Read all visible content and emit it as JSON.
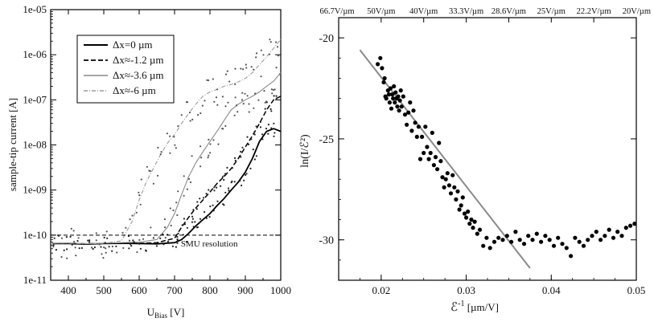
{
  "chart_data": [
    {
      "type": "line",
      "ylabel": "sample-tip current [A]",
      "xlabel_main": "U",
      "xlabel_sub": "Bias",
      "xlabel_unit": " [V]",
      "x_scale": "linear",
      "y_scale": "log",
      "xlim": [
        350,
        1000
      ],
      "ylim": [
        1e-11,
        1e-05
      ],
      "x_ticks": [
        400,
        500,
        600,
        700,
        800,
        900,
        1000
      ],
      "x_tick_labels": [
        "400",
        "500",
        "600",
        "700",
        "800",
        "900",
        "1000"
      ],
      "y_ticks": [
        1e-11,
        1e-10,
        1e-09,
        1e-08,
        1e-07,
        1e-06,
        1e-05
      ],
      "y_tick_labels": [
        "1e-11",
        "1e-10",
        "1e-09",
        "1e-08",
        "1e-07",
        "1e-06",
        "1e-05"
      ],
      "grid": false,
      "legend_position": "top-left",
      "annotation": {
        "text": "SMU resolution",
        "x": 718,
        "y": 8.5e-11
      },
      "reference_line": {
        "y": 1e-10,
        "style": "dashed"
      },
      "series": [
        {
          "name": "Δx=0 µm",
          "style": "solid",
          "color": "#000000",
          "x": [
            355,
            400,
            450,
            500,
            550,
            600,
            650,
            700,
            720,
            740,
            760,
            780,
            800,
            820,
            840,
            860,
            880,
            900,
            920,
            940,
            960,
            980,
            1000
          ],
          "y": [
            6.5e-11,
            6.5e-11,
            6.3e-11,
            6.5e-11,
            6.6e-11,
            6.5e-11,
            6.4e-11,
            6.8e-11,
            8e-11,
            1.1e-10,
            1.6e-10,
            2.2e-10,
            3e-10,
            4.5e-10,
            6.5e-10,
            1e-09,
            1.5e-09,
            2.5e-09,
            5e-09,
            1.2e-08,
            2e-08,
            2.3e-08,
            2e-08
          ]
        },
        {
          "name": "Δx≈-1.2 µm",
          "style": "dashed",
          "color": "#000000",
          "x": [
            355,
            400,
            450,
            500,
            550,
            600,
            650,
            700,
            720,
            740,
            760,
            780,
            800,
            820,
            840,
            860,
            880,
            900,
            920,
            940,
            960,
            980,
            1000
          ],
          "y": [
            6.5e-11,
            6.6e-11,
            6.4e-11,
            6.6e-11,
            6.5e-11,
            6.6e-11,
            6.8e-11,
            8.5e-11,
            1.5e-10,
            2.5e-10,
            4e-10,
            6e-10,
            9e-10,
            1.4e-09,
            2e-09,
            3e-09,
            5e-09,
            9e-09,
            1.6e-08,
            3e-08,
            6e-08,
            1e-07,
            1.2e-07
          ]
        },
        {
          "name": "Δx≈-3.6 µm",
          "style": "dotted-line",
          "color": "#8a8a8a",
          "x": [
            355,
            400,
            450,
            500,
            550,
            600,
            650,
            680,
            700,
            720,
            740,
            760,
            780,
            800,
            820,
            840,
            860,
            880,
            900,
            920,
            940,
            960,
            980,
            1000
          ],
          "y": [
            6.6e-11,
            6.7e-11,
            6.5e-11,
            6.6e-11,
            6.8e-11,
            7e-11,
            8e-11,
            1.5e-10,
            3e-10,
            8e-10,
            2e-09,
            4e-09,
            7e-09,
            1.2e-08,
            2e-08,
            3.5e-08,
            6e-08,
            8e-08,
            1e-07,
            1.2e-07,
            1.5e-07,
            2e-07,
            2.6e-07,
            4e-07
          ]
        },
        {
          "name": "Δx≈-6 µm",
          "style": "dash-dot",
          "color": "#9a9a9a",
          "x": [
            355,
            400,
            450,
            500,
            550,
            580,
            600,
            620,
            640,
            660,
            680,
            700,
            720,
            740,
            760,
            780,
            800,
            820,
            840,
            860,
            880,
            900,
            920,
            940,
            960,
            980,
            1000
          ],
          "y": [
            6.6e-11,
            6.6e-11,
            6.4e-11,
            6.6e-11,
            7.5e-11,
            2e-10,
            6e-10,
            1.5e-09,
            3e-09,
            6e-09,
            1.1e-08,
            1.7e-08,
            3e-08,
            5e-08,
            8e-08,
            1.2e-07,
            1.5e-07,
            1.7e-07,
            2e-07,
            2.2e-07,
            2.5e-07,
            3e-07,
            4e-07,
            6e-07,
            9e-07,
            1.4e-06,
            2.2e-06
          ]
        }
      ]
    },
    {
      "type": "scatter",
      "ylabel": "ln(I/ℰ²)",
      "xlabel_main": "ℰ",
      "xlabel_sup": "-1",
      "xlabel_unit": " [µm/V]",
      "xlim": [
        0.015,
        0.05
      ],
      "ylim": [
        -32,
        -19
      ],
      "x_ticks": [
        0.02,
        0.03,
        0.04,
        0.05
      ],
      "x_tick_labels": [
        "0.02",
        "0.03",
        "0.04",
        "0.05"
      ],
      "y_ticks": [
        -20,
        -25,
        -30
      ],
      "y_tick_labels": [
        "-20",
        "-25",
        "-30"
      ],
      "grid": false,
      "top_axis": {
        "x": [
          0.015,
          0.02,
          0.025,
          0.03,
          0.035,
          0.04,
          0.045,
          0.05
        ],
        "labels": [
          "66.7V/µm",
          "50V/µm",
          "40V/µm",
          "33.3V/µm",
          "28.6V/µm",
          "25V/µm",
          "22.2V/µm",
          "20V/µm"
        ]
      },
      "fit_line": {
        "x": [
          0.0175,
          0.0375
        ],
        "y": [
          -20.6,
          -31.4
        ]
      },
      "points": {
        "x": [
          0.0196,
          0.0199,
          0.0201,
          0.0203,
          0.0204,
          0.0205,
          0.0206,
          0.0208,
          0.0209,
          0.021,
          0.0211,
          0.0212,
          0.0213,
          0.0214,
          0.0215,
          0.0216,
          0.0217,
          0.0218,
          0.0219,
          0.022,
          0.0221,
          0.0222,
          0.0223,
          0.0224,
          0.0226,
          0.0228,
          0.023,
          0.0232,
          0.0234,
          0.0236,
          0.0238,
          0.024,
          0.0242,
          0.0244,
          0.0246,
          0.0248,
          0.025,
          0.0252,
          0.0254,
          0.0256,
          0.0258,
          0.026,
          0.0262,
          0.0264,
          0.0266,
          0.0268,
          0.027,
          0.0272,
          0.0274,
          0.0276,
          0.0278,
          0.028,
          0.0282,
          0.0284,
          0.0286,
          0.0288,
          0.029,
          0.0292,
          0.0294,
          0.0296,
          0.0298,
          0.03,
          0.0302,
          0.0304,
          0.0306,
          0.0308,
          0.031,
          0.0313,
          0.0316,
          0.032,
          0.0324,
          0.0328,
          0.0333,
          0.0338,
          0.0343,
          0.0348,
          0.0353,
          0.0358,
          0.0363,
          0.0368,
          0.0373,
          0.0378,
          0.0383,
          0.0388,
          0.0393,
          0.0398,
          0.0403,
          0.0408,
          0.0413,
          0.0418,
          0.0423,
          0.0428,
          0.0433,
          0.0438,
          0.0443,
          0.0448,
          0.0453,
          0.0458,
          0.0463,
          0.0468,
          0.0473,
          0.0478,
          0.0483,
          0.0488,
          0.0493,
          0.0498
        ],
        "y": [
          -21.3,
          -21.0,
          -21.5,
          -22.2,
          -22.0,
          -22.9,
          -23.0,
          -22.6,
          -22.8,
          -23.2,
          -22.5,
          -23.5,
          -22.8,
          -23.0,
          -22.4,
          -23.2,
          -22.7,
          -23.0,
          -23.4,
          -22.9,
          -23.6,
          -23.1,
          -22.6,
          -23.4,
          -22.9,
          -23.8,
          -24.3,
          -23.7,
          -23.2,
          -24.6,
          -23.6,
          -24.2,
          -24.9,
          -24.4,
          -26.0,
          -24.9,
          -25.7,
          -24.4,
          -25.4,
          -26.0,
          -25.7,
          -24.7,
          -26.3,
          -25.9,
          -26.5,
          -25.2,
          -26.1,
          -26.9,
          -27.4,
          -27.0,
          -26.7,
          -27.3,
          -27.7,
          -26.8,
          -27.4,
          -28.0,
          -27.6,
          -28.5,
          -28.3,
          -27.9,
          -28.7,
          -28.9,
          -28.6,
          -29.2,
          -29.0,
          -29.4,
          -29.1,
          -29.7,
          -29.5,
          -30.3,
          -29.9,
          -30.4,
          -30.1,
          -29.9,
          -30.0,
          -29.8,
          -30.1,
          -29.6,
          -30.0,
          -30.2,
          -29.8,
          -30.0,
          -29.7,
          -30.1,
          -29.8,
          -30.0,
          -30.3,
          -29.9,
          -30.2,
          -30.4,
          -30.8,
          -29.9,
          -30.1,
          -30.3,
          -30.0,
          -29.8,
          -29.6,
          -30.0,
          -29.8,
          -29.5,
          -29.9,
          -29.6,
          -29.8,
          -29.4,
          -29.3,
          -29.2
        ]
      }
    }
  ]
}
